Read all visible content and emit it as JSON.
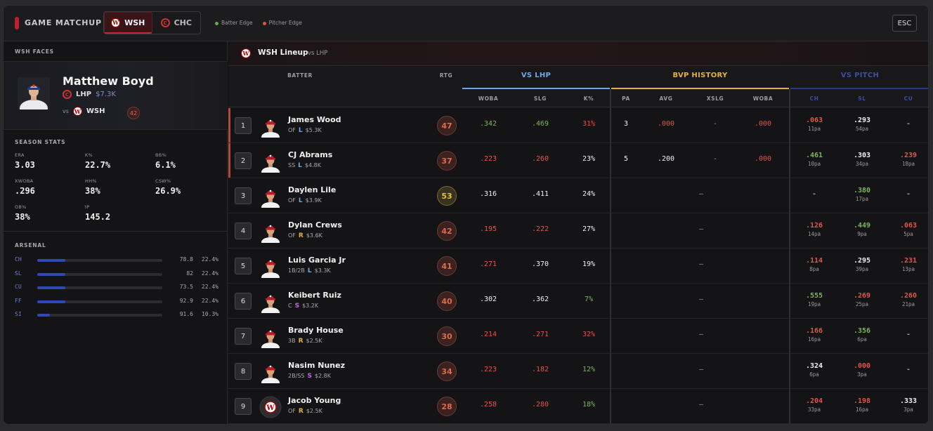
{
  "header": {
    "title": "GAME MATCHUP",
    "teams": [
      {
        "abbr": "WSH",
        "active": true
      },
      {
        "abbr": "CHC",
        "active": false
      }
    ],
    "legend": [
      {
        "label": "Batter Edge",
        "color": "#6aa84f"
      },
      {
        "label": "Pitcher Edge",
        "color": "#d9534f"
      }
    ],
    "esc_label": "ESC"
  },
  "pitcher": {
    "faces_label": "WSH FACES",
    "name": "Matthew Boyd",
    "hand": "LHP",
    "salary": "$7.3K",
    "vs_label": "vs",
    "opp": "WSH",
    "rating": "42",
    "season_label": "SEASON STATS",
    "stats": [
      {
        "k": "ERA",
        "v": "3.03"
      },
      {
        "k": "K%",
        "v": "22.7%"
      },
      {
        "k": "BB%",
        "v": "6.1%"
      },
      {
        "k": "XWOBA",
        "v": ".296"
      },
      {
        "k": "HH%",
        "v": "38%"
      },
      {
        "k": "CSW%",
        "v": "26.9%"
      },
      {
        "k": "GB%",
        "v": "38%"
      },
      {
        "k": "IP",
        "v": "145.2"
      }
    ],
    "arsenal_label": "ARSENAL",
    "arsenal": [
      {
        "type": "CH",
        "velo": "78.8",
        "usage": "22.4%",
        "usage_pct": 22.4
      },
      {
        "type": "SL",
        "velo": "82",
        "usage": "22.4%",
        "usage_pct": 22.4
      },
      {
        "type": "CU",
        "velo": "73.5",
        "usage": "22.4%",
        "usage_pct": 22.4
      },
      {
        "type": "FF",
        "velo": "92.9",
        "usage": "22.4%",
        "usage_pct": 22.4
      },
      {
        "type": "SI",
        "velo": "91.6",
        "usage": "10.3%",
        "usage_pct": 10.3
      }
    ]
  },
  "lineup": {
    "title": "WSH Lineup",
    "vs": "vs  LHP",
    "col_batter": "BATTER",
    "col_rtg": "RTG",
    "groups": [
      {
        "label": "VS LHP",
        "color": "#6fa8e8"
      },
      {
        "label": "BVP HISTORY",
        "color": "#e2b33a"
      },
      {
        "label": "VS PITCH",
        "color": "#3d4f9e"
      }
    ],
    "subcols": [
      "WOBA",
      "SLG",
      "K%",
      "PA",
      "AVG",
      "XSLG",
      "WOBA",
      "CH",
      "SL",
      "CU"
    ],
    "rows": [
      {
        "order": "1",
        "name": "James Wood",
        "pos": "OF",
        "hand": "L",
        "salary": "$5.3K",
        "rtg": "47",
        "edge": "red",
        "woba": ".342",
        "woba_c": "green",
        "slg": ".469",
        "slg_c": "green",
        "k": "31%",
        "k_c": "red",
        "bvp": {
          "pa": "3",
          "avg": ".000",
          "avg_c": "red",
          "xslg": "-",
          "woba": ".000",
          "woba_c": "red"
        },
        "ch": {
          "v": ".063",
          "c": "red",
          "pa": "11pa"
        },
        "sl": {
          "v": ".293",
          "c": "white",
          "pa": "54pa"
        },
        "cu": {
          "v": "-",
          "c": "dim",
          "pa": ""
        }
      },
      {
        "order": "2",
        "name": "CJ Abrams",
        "pos": "SS",
        "hand": "L",
        "salary": "$4.8K",
        "rtg": "37",
        "edge": "red",
        "woba": ".223",
        "woba_c": "red",
        "slg": ".260",
        "slg_c": "red",
        "k": "23%",
        "k_c": "white",
        "bvp": {
          "pa": "5",
          "avg": ".200",
          "avg_c": "white",
          "xslg": "-",
          "woba": ".000",
          "woba_c": "red"
        },
        "ch": {
          "v": ".461",
          "c": "green",
          "pa": "10pa"
        },
        "sl": {
          "v": ".303",
          "c": "white",
          "pa": "34pa"
        },
        "cu": {
          "v": ".239",
          "c": "red",
          "pa": "18pa"
        }
      },
      {
        "order": "3",
        "name": "Daylen Lile",
        "pos": "OF",
        "hand": "L",
        "salary": "$3.9K",
        "rtg": "53",
        "edge": "",
        "woba": ".316",
        "woba_c": "white",
        "slg": ".411",
        "slg_c": "white",
        "k": "24%",
        "k_c": "white",
        "bvp": null,
        "ch": {
          "v": "-",
          "c": "dim",
          "pa": ""
        },
        "sl": {
          "v": ".380",
          "c": "green",
          "pa": "17pa"
        },
        "cu": {
          "v": "-",
          "c": "dim",
          "pa": ""
        }
      },
      {
        "order": "4",
        "name": "Dylan Crews",
        "pos": "OF",
        "hand": "R",
        "salary": "$3.6K",
        "rtg": "42",
        "edge": "",
        "woba": ".195",
        "woba_c": "red",
        "slg": ".222",
        "slg_c": "red",
        "k": "27%",
        "k_c": "white",
        "bvp": null,
        "ch": {
          "v": ".126",
          "c": "red",
          "pa": "14pa"
        },
        "sl": {
          "v": ".449",
          "c": "green",
          "pa": "9pa"
        },
        "cu": {
          "v": ".063",
          "c": "red",
          "pa": "5pa"
        }
      },
      {
        "order": "5",
        "name": "Luis Garcia Jr",
        "pos": "1B/2B",
        "hand": "L",
        "salary": "$3.3K",
        "rtg": "41",
        "edge": "",
        "woba": ".271",
        "woba_c": "red",
        "slg": ".370",
        "slg_c": "white",
        "k": "19%",
        "k_c": "white",
        "bvp": null,
        "ch": {
          "v": ".114",
          "c": "red",
          "pa": "8pa"
        },
        "sl": {
          "v": ".295",
          "c": "white",
          "pa": "39pa"
        },
        "cu": {
          "v": ".231",
          "c": "red",
          "pa": "13pa"
        }
      },
      {
        "order": "6",
        "name": "Keibert Ruiz",
        "pos": "C",
        "hand": "S",
        "salary": "$3.2K",
        "rtg": "40",
        "edge": "",
        "woba": ".302",
        "woba_c": "white",
        "slg": ".362",
        "slg_c": "white",
        "k": "7%",
        "k_c": "green",
        "bvp": null,
        "ch": {
          "v": ".555",
          "c": "green",
          "pa": "19pa"
        },
        "sl": {
          "v": ".269",
          "c": "red",
          "pa": "25pa"
        },
        "cu": {
          "v": ".260",
          "c": "red",
          "pa": "21pa"
        }
      },
      {
        "order": "7",
        "name": "Brady House",
        "pos": "3B",
        "hand": "R",
        "salary": "$2.5K",
        "rtg": "30",
        "edge": "",
        "woba": ".214",
        "woba_c": "red",
        "slg": ".271",
        "slg_c": "red",
        "k": "32%",
        "k_c": "red",
        "bvp": null,
        "ch": {
          "v": ".166",
          "c": "red",
          "pa": "16pa"
        },
        "sl": {
          "v": ".356",
          "c": "green",
          "pa": "6pa"
        },
        "cu": {
          "v": "-",
          "c": "dim",
          "pa": ""
        }
      },
      {
        "order": "8",
        "name": "Nasim Nunez",
        "pos": "2B/SS",
        "hand": "S",
        "salary": "$2.8K",
        "rtg": "34",
        "edge": "",
        "woba": ".223",
        "woba_c": "red",
        "slg": ".182",
        "slg_c": "red",
        "k": "12%",
        "k_c": "green",
        "bvp": null,
        "ch": {
          "v": ".324",
          "c": "white",
          "pa": "6pa"
        },
        "sl": {
          "v": ".000",
          "c": "red",
          "pa": "3pa"
        },
        "cu": {
          "v": "-",
          "c": "dim",
          "pa": ""
        }
      },
      {
        "order": "9",
        "name": "Jacob Young",
        "pos": "OF",
        "hand": "R",
        "salary": "$2.5K",
        "rtg": "28",
        "edge": "",
        "woba": ".258",
        "woba_c": "red",
        "slg": ".280",
        "slg_c": "red",
        "k": "18%",
        "k_c": "green",
        "bvp": null,
        "ch": {
          "v": ".204",
          "c": "red",
          "pa": "33pa"
        },
        "sl": {
          "v": ".198",
          "c": "red",
          "pa": "16pa"
        },
        "cu": {
          "v": ".333",
          "c": "white",
          "pa": "3pa"
        }
      }
    ],
    "no_bvp": "—"
  }
}
